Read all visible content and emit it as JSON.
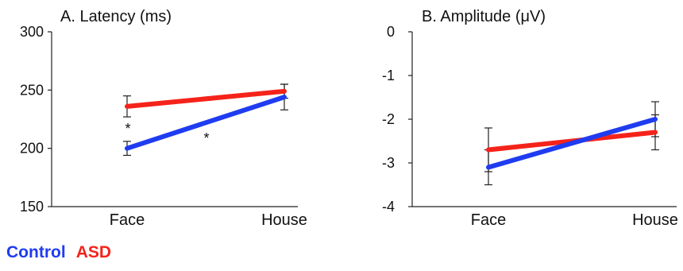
{
  "legend": {
    "control_label": "Control",
    "asd_label": "ASD"
  },
  "colors": {
    "control": "#1f3cf0",
    "asd": "#f5231a",
    "axis": "#222222"
  },
  "chart_data": [
    {
      "type": "line",
      "title": "A. Latency (ms)",
      "categories": [
        "Face",
        "House"
      ],
      "ylim": [
        150,
        300
      ],
      "yticks": [
        "300",
        "250",
        "200",
        "150"
      ],
      "grid": false,
      "series": [
        {
          "name": "Control",
          "values": [
            200,
            244
          ],
          "errors": [
            6,
            11
          ]
        },
        {
          "name": "ASD",
          "values": [
            236,
            249
          ],
          "errors": [
            9,
            6
          ]
        }
      ],
      "annotations": [
        "*",
        "*"
      ]
    },
    {
      "type": "line",
      "title": "B. Amplitude (μV)",
      "categories": [
        "Face",
        "House"
      ],
      "ylim": [
        -4,
        0
      ],
      "yticks": [
        "0",
        "-1",
        "-2",
        "-3",
        "-4"
      ],
      "grid": false,
      "series": [
        {
          "name": "Control",
          "values": [
            -3.1,
            -2.0
          ],
          "errors": [
            0.4,
            0.4
          ]
        },
        {
          "name": "ASD",
          "values": [
            -2.7,
            -2.3
          ],
          "errors": [
            0.5,
            0.4
          ]
        }
      ]
    }
  ]
}
